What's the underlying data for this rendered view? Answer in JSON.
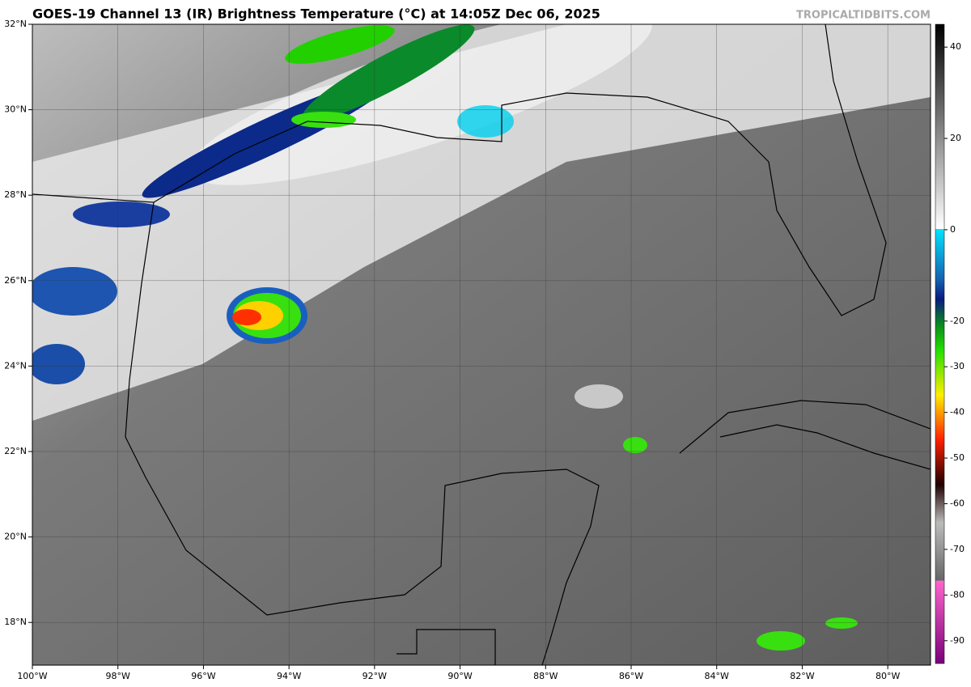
{
  "header": {
    "title": "GOES-19 Channel 13 (IR) Brightness Temperature (°C) at 14:05Z Dec 06, 2025",
    "credit": "TROPICALTIDBITS.COM"
  },
  "map": {
    "lon_range": [
      -100,
      -79
    ],
    "lat_range": [
      17,
      32
    ],
    "lon_ticks": [
      {
        "value": -100,
        "label": "100°W"
      },
      {
        "value": -98,
        "label": "98°W"
      },
      {
        "value": -96,
        "label": "96°W"
      },
      {
        "value": -94,
        "label": "94°W"
      },
      {
        "value": -92,
        "label": "92°W"
      },
      {
        "value": -90,
        "label": "90°W"
      },
      {
        "value": -88,
        "label": "88°W"
      },
      {
        "value": -86,
        "label": "86°W"
      },
      {
        "value": -84,
        "label": "84°W"
      },
      {
        "value": -82,
        "label": "82°W"
      },
      {
        "value": -80,
        "label": "80°W"
      }
    ],
    "lat_ticks": [
      {
        "value": 32,
        "label": "32°N"
      },
      {
        "value": 30,
        "label": "30°N"
      },
      {
        "value": 28,
        "label": "28°N"
      },
      {
        "value": 26,
        "label": "26°N"
      },
      {
        "value": 24,
        "label": "24°N"
      },
      {
        "value": 22,
        "label": "22°N"
      },
      {
        "value": 20,
        "label": "20°N"
      },
      {
        "value": 18,
        "label": "18°N"
      }
    ]
  },
  "colorbar": {
    "range": [
      -95,
      45
    ],
    "ticks": [
      40,
      20,
      0,
      -20,
      -30,
      -40,
      -50,
      -60,
      -70,
      -80,
      -90
    ]
  }
}
